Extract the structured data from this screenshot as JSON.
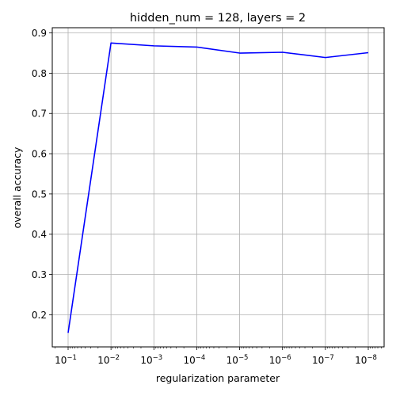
{
  "chart_data": {
    "type": "line",
    "title": "hidden_num = 128, layers = 2",
    "xlabel": "regularization parameter",
    "ylabel": "overall accuracy",
    "x_scale": "log",
    "x_axis_inverted": true,
    "x": [
      0.1,
      0.01,
      0.001,
      0.0001,
      1e-05,
      1e-06,
      1e-07,
      1e-08
    ],
    "x_tick_labels": [
      {
        "base": "10",
        "exp": "−1"
      },
      {
        "base": "10",
        "exp": "−2"
      },
      {
        "base": "10",
        "exp": "−3"
      },
      {
        "base": "10",
        "exp": "−4"
      },
      {
        "base": "10",
        "exp": "−5"
      },
      {
        "base": "10",
        "exp": "−6"
      },
      {
        "base": "10",
        "exp": "−7"
      },
      {
        "base": "10",
        "exp": "−8"
      }
    ],
    "y_ticks": [
      0.2,
      0.3,
      0.4,
      0.5,
      0.6,
      0.7,
      0.8,
      0.9
    ],
    "y_tick_labels": [
      "0.2",
      "0.3",
      "0.4",
      "0.5",
      "0.6",
      "0.7",
      "0.8",
      "0.9"
    ],
    "ylim": [
      0.12,
      0.913
    ],
    "grid": true,
    "series": [
      {
        "values": [
          0.155,
          0.875,
          0.868,
          0.865,
          0.85,
          0.852,
          0.839,
          0.851
        ],
        "color": "#0000ff"
      }
    ]
  }
}
